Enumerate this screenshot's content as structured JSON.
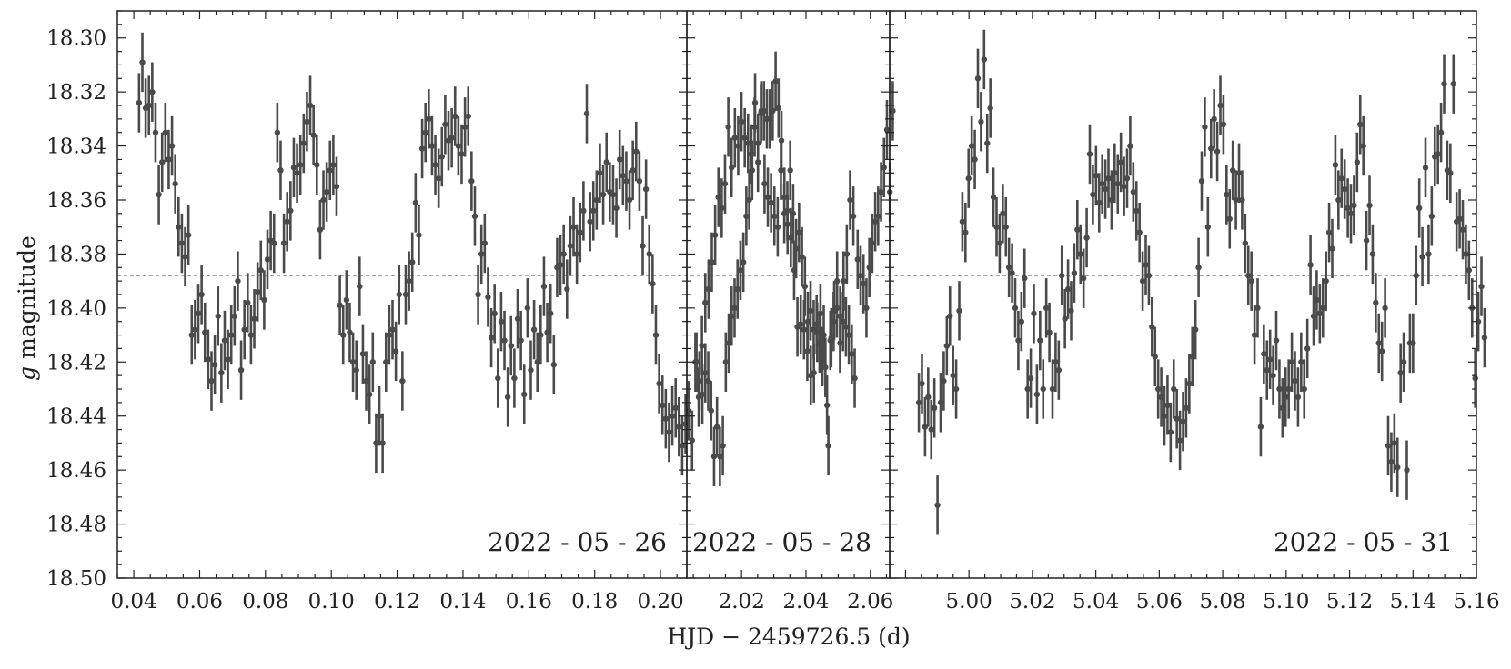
{
  "chart_data": {
    "type": "scatter",
    "xlabel": "HJD − 2459726.5 (d)",
    "ylabel": "magnitude",
    "ylabel_symbol": "g",
    "ylim": [
      18.29,
      18.5
    ],
    "y_inverted": true,
    "yticks": [
      "18.30",
      "18.32",
      "18.34",
      "18.36",
      "18.38",
      "18.40",
      "18.42",
      "18.44",
      "18.46",
      "18.48",
      "18.50"
    ],
    "reference_line": 18.388,
    "color": "#4a4a4a",
    "panels": [
      {
        "label": "2022 - 05 - 26",
        "xlim": [
          0.035,
          0.208
        ],
        "xticks": [
          "0.04",
          "0.06",
          "0.08",
          "0.10",
          "0.12",
          "0.14",
          "0.16",
          "0.18",
          "0.20"
        ],
        "x_start": 0.0416,
        "x_step": 0.001,
        "err": 0.011,
        "y": [
          18.324,
          18.309,
          18.326,
          18.325,
          18.32,
          18.335,
          18.358,
          18.346,
          18.335,
          18.345,
          18.34,
          18.354,
          18.37,
          18.376,
          18.381,
          18.373,
          18.41,
          18.408,
          18.402,
          18.395,
          18.409,
          18.419,
          18.427,
          18.421,
          18.403,
          18.424,
          18.412,
          18.419,
          18.41,
          18.403,
          18.39,
          18.423,
          18.408,
          18.398,
          18.41,
          18.404,
          18.394,
          18.386,
          18.397,
          18.382,
          18.375,
          18.376,
          18.335,
          18.349,
          18.376,
          18.368,
          18.364,
          18.348,
          18.35,
          18.347,
          18.339,
          18.331,
          18.325,
          18.336,
          18.347,
          18.371,
          18.36,
          18.357,
          18.349,
          18.347,
          18.355,
          18.399,
          18.41,
          18.397,
          18.409,
          18.42,
          18.423,
          18.392,
          18.417,
          18.427,
          18.432,
          18.42,
          18.45,
          18.44,
          18.45,
          18.42,
          18.41,
          18.408,
          18.416,
          18.395,
          18.427,
          18.395,
          18.39,
          18.383,
          18.361,
          18.373,
          18.341,
          18.335,
          18.33,
          18.34,
          18.347,
          18.352,
          18.344,
          18.332,
          18.338,
          18.337,
          18.329,
          18.34,
          18.343,
          18.333,
          18.329,
          18.353,
          18.366,
          18.395,
          18.38,
          18.376,
          18.396,
          18.411,
          18.402,
          18.426,
          18.405,
          18.412,
          18.433,
          18.414,
          18.426,
          18.404,
          18.412,
          18.432,
          18.4,
          18.423,
          18.408,
          18.42,
          18.41,
          18.392,
          18.409,
          18.402,
          18.421,
          18.385,
          18.384,
          18.38,
          18.393,
          18.377,
          18.37,
          18.38,
          18.372,
          18.364,
          18.328,
          18.368,
          18.364,
          18.36,
          18.35,
          18.358,
          18.346,
          18.357,
          18.358,
          18.363,
          18.345,
          18.351,
          18.353,
          18.36,
          18.349,
          18.342,
          18.353,
          18.377,
          18.356,
          18.38,
          18.391,
          18.41,
          18.428,
          18.436,
          18.441,
          18.446,
          18.44,
          18.437,
          18.444,
          18.451,
          18.443,
          18.438,
          18.449,
          18.42,
          18.433,
          18.414,
          18.398,
          18.393,
          18.383,
          18.373,
          18.359,
          18.363,
          18.354,
          18.333,
          18.348,
          18.337,
          18.34,
          18.331,
          18.337,
          18.339,
          18.343,
          18.333,
          18.346,
          18.327,
          18.354,
          18.359,
          18.361,
          18.366,
          18.37,
          18.349,
          18.365,
          18.369,
          18.374,
          18.386,
          18.407,
          18.406,
          18.408,
          18.416,
          18.401,
          18.424,
          18.409,
          18.402,
          18.41,
          18.436,
          18.412,
          18.405,
          18.4,
          18.403,
          18.39,
          18.38,
          18.36,
          18.366
        ]
      },
      {
        "label": "2022 - 05 - 28",
        "xlim": [
          2.003,
          2.066
        ],
        "xticks": [
          "2.02",
          "2.04",
          "2.06"
        ],
        "x_start": 2.006,
        "x_step": 0.00091,
        "err": 0.011,
        "y": [
          18.42,
          18.427,
          18.432,
          18.424,
          18.427,
          18.438,
          18.455,
          18.444,
          18.455,
          18.451,
          18.42,
          18.413,
          18.403,
          18.4,
          18.393,
          18.386,
          18.383,
          18.366,
          18.36,
          18.349,
          18.324,
          18.339,
          18.328,
          18.327,
          18.33,
          18.33,
          18.327,
          18.316,
          18.326,
          18.338,
          18.359,
          18.364,
          18.349,
          18.365,
          18.378,
          18.372,
          18.381,
          18.392,
          18.405,
          18.425,
          18.408,
          18.406,
          18.413,
          18.418,
          18.422,
          18.451,
          18.411,
          18.401,
          18.39,
          18.413,
          18.405,
          18.407,
          18.41,
          18.417,
          18.426,
          18.382,
          18.388,
          18.391,
          18.4,
          18.385,
          18.376,
          18.368,
          18.366,
          18.357,
          18.348,
          18.334,
          18.357,
          18.327
        ]
      },
      {
        "label": "2022 - 05 - 31",
        "xlim": [
          4.975,
          5.16
        ],
        "xticks": [
          "5.00",
          "5.02",
          "5.04",
          "5.06",
          "5.08",
          "5.10",
          "5.12",
          "5.14",
          "5.16"
        ],
        "x_start": 4.9842,
        "x_step": 0.00098,
        "err": 0.011,
        "y": [
          18.435,
          18.428,
          18.444,
          18.433,
          18.445,
          18.437,
          18.473,
          18.435,
          18.427,
          18.414,
          18.403,
          18.425,
          18.43,
          18.401,
          18.368,
          18.372,
          18.352,
          18.34,
          18.345,
          18.315,
          18.331,
          18.308,
          18.339,
          18.326,
          18.359,
          18.37,
          18.376,
          18.365,
          18.37,
          18.385,
          18.387,
          18.4,
          18.412,
          18.405,
          18.389,
          18.43,
          18.426,
          18.402,
          18.432,
          18.412,
          18.43,
          18.4,
          18.409,
          18.43,
          18.42,
          18.423,
          18.388,
          18.404,
          18.393,
          18.401,
          18.387,
          18.371,
          18.38,
          18.389,
          18.374,
          18.343,
          18.358,
          18.351,
          18.361,
          18.354,
          18.356,
          18.352,
          18.36,
          18.35,
          18.354,
          18.346,
          18.355,
          18.352,
          18.34,
          18.357,
          18.364,
          18.372,
          18.39,
          18.384,
          18.388,
          18.407,
          18.418,
          18.43,
          18.433,
          18.44,
          18.436,
          18.446,
          18.43,
          18.441,
          18.449,
          18.442,
          18.437,
          18.428,
          18.418,
          18.408,
          18.385,
          18.353,
          18.333,
          18.37,
          18.341,
          18.33,
          18.342,
          18.325,
          18.332,
          18.358,
          18.367,
          18.349,
          18.36,
          18.35,
          18.36,
          18.376,
          18.388,
          18.39,
          18.41,
          18.4,
          18.444,
          18.417,
          18.423,
          18.419,
          18.425,
          18.412,
          18.43,
          18.437,
          18.433,
          18.43,
          18.42,
          18.427,
          18.433,
          18.42,
          18.43,
          18.415,
          18.384,
          18.403,
          18.397,
          18.402,
          18.4,
          18.39,
          18.372,
          18.378,
          18.347,
          18.36,
          18.352,
          18.356,
          18.363,
          18.365,
          18.362,
          18.346,
          18.332,
          18.34,
          18.375,
          18.362,
          18.38,
          18.398,
          18.413,
          18.416,
          18.4,
          18.451,
          18.457,
          18.45,
          18.459,
          18.424,
          18.42,
          18.46,
          18.413,
          18.413,
          18.388,
          18.363,
          18.381,
          18.348,
          18.38,
          18.366,
          18.344,
          18.343,
          18.335,
          18.317,
          18.349,
          18.35,
          18.317,
          18.368,
          18.367,
          18.371,
          18.38,
          18.386,
          18.4,
          18.426,
          18.405,
          18.392,
          18.411
        ]
      }
    ]
  }
}
